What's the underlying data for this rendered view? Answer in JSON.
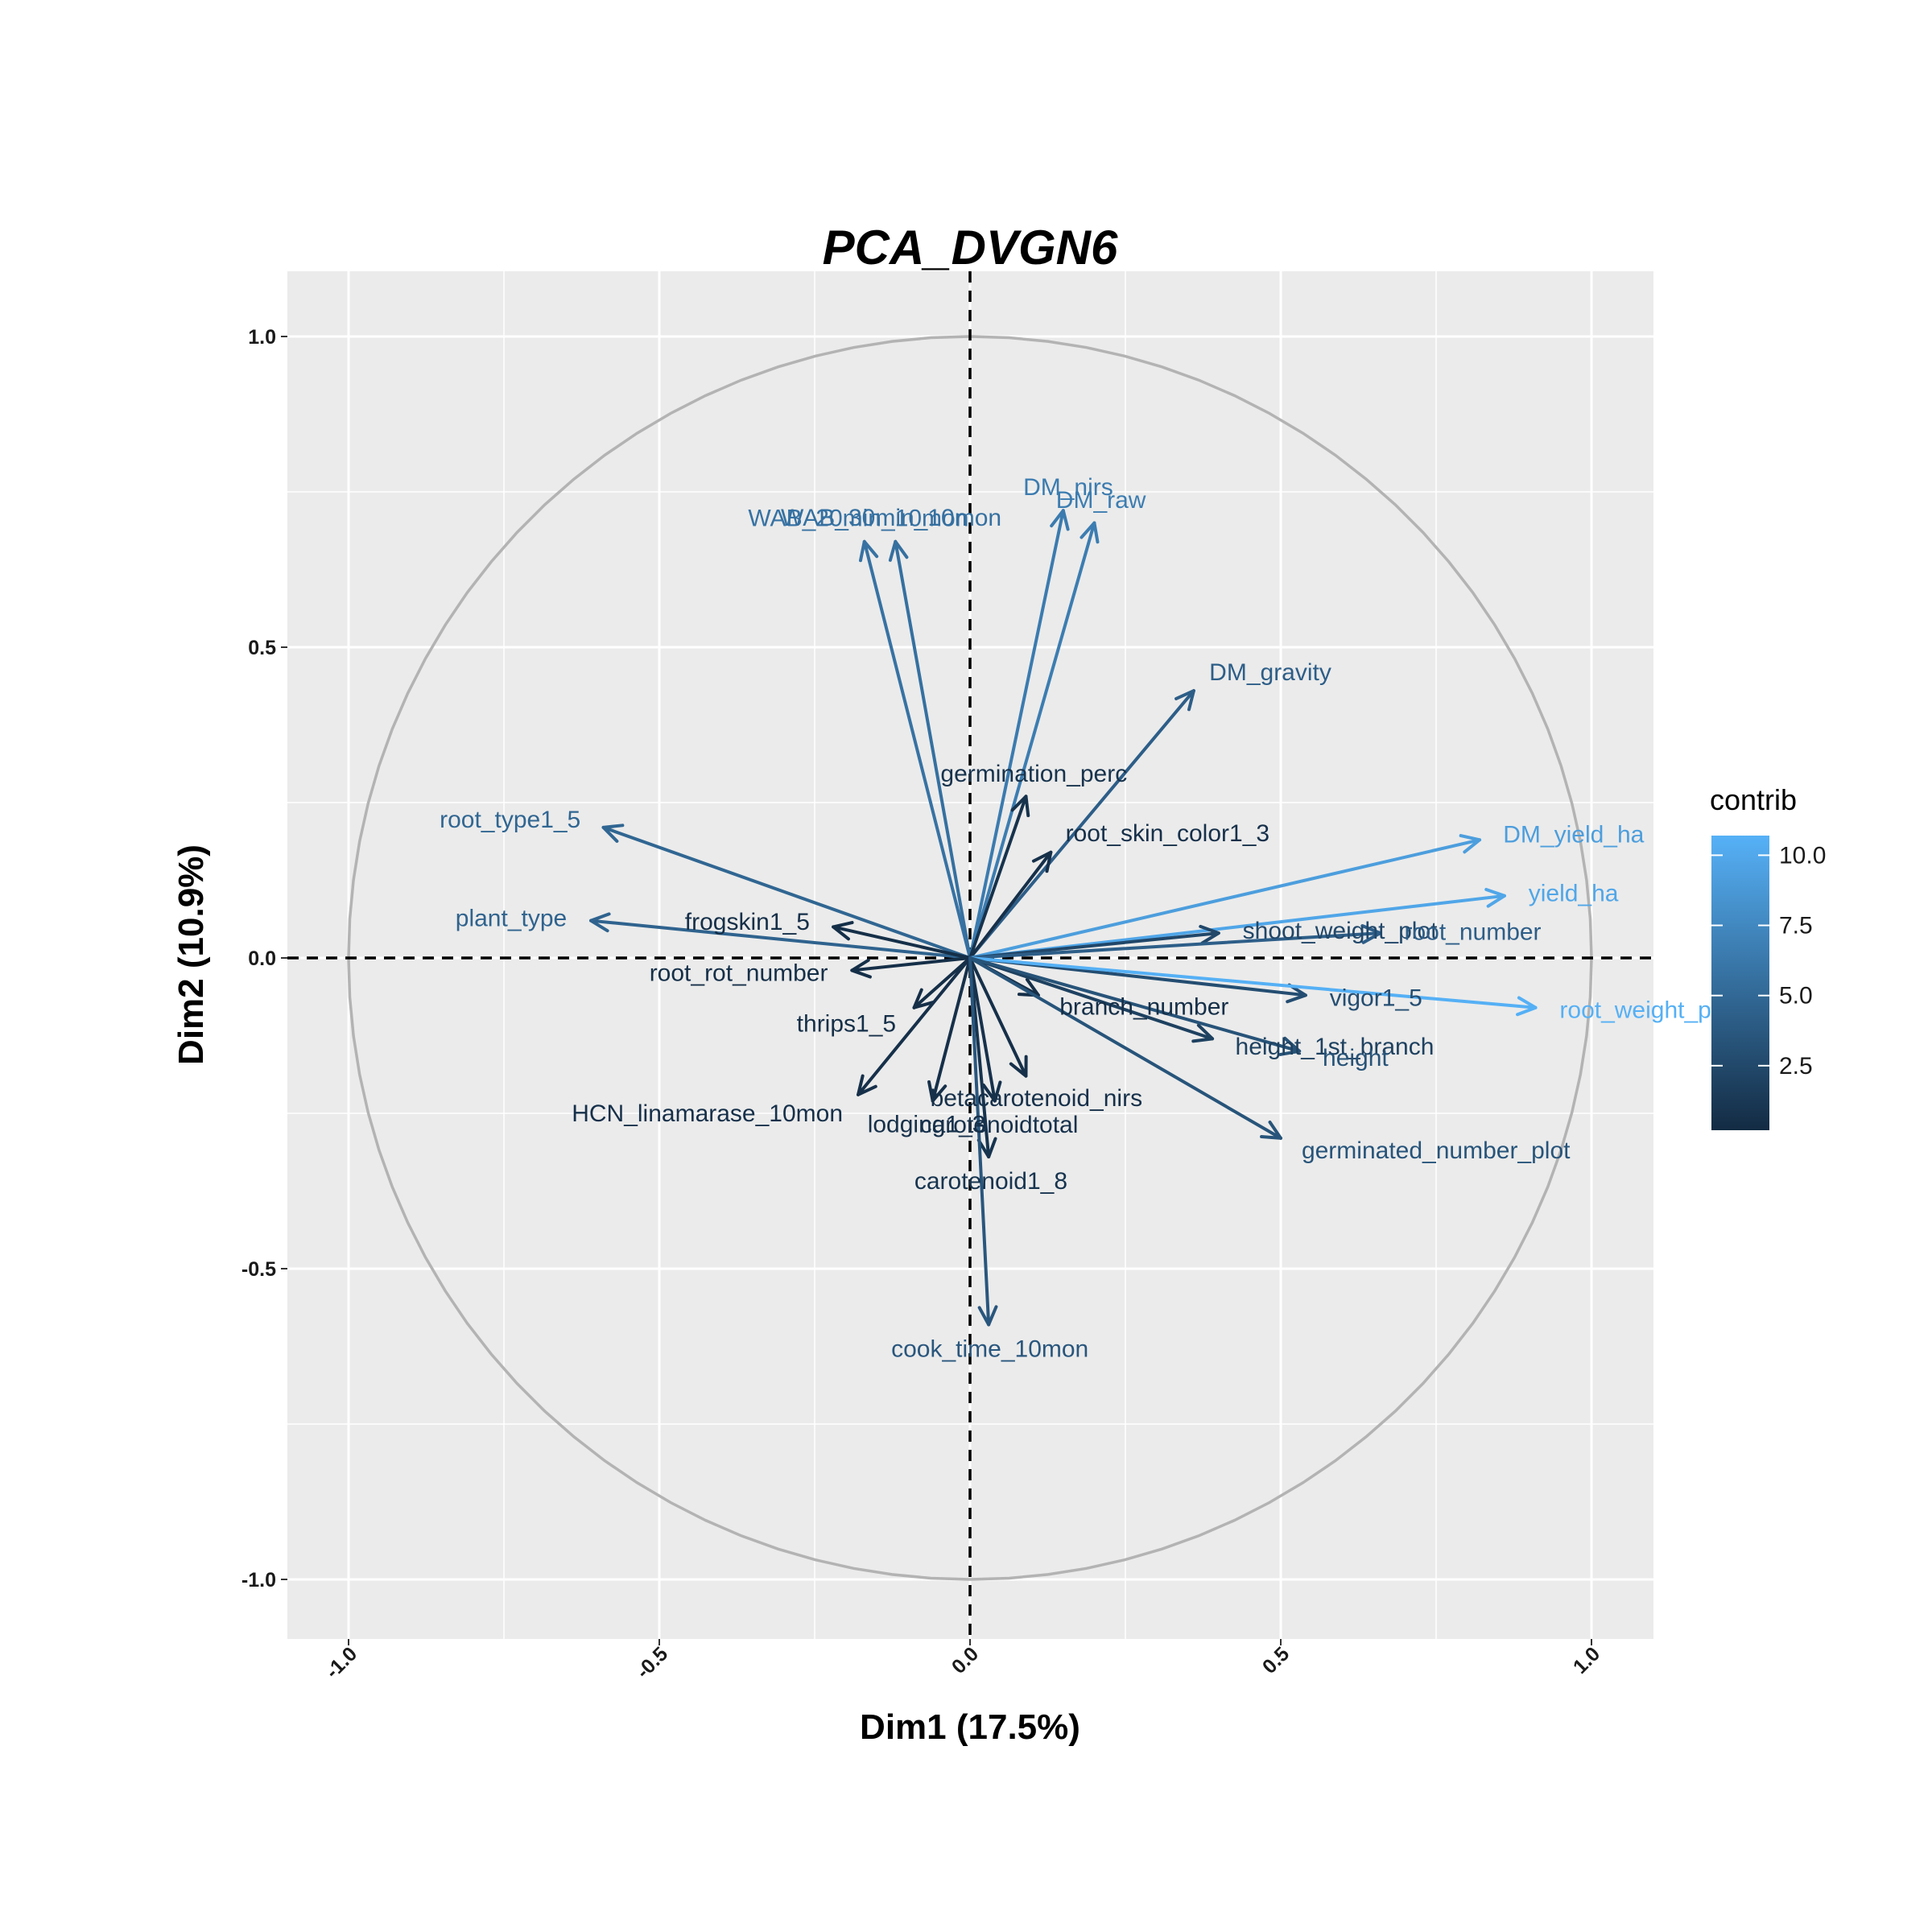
{
  "chart_data": {
    "type": "scatter",
    "subtype": "pca-correlation-circle",
    "title": "PCA_DVGN6",
    "xlabel": "Dim1 (17.5%)",
    "ylabel": "Dim2 (10.9%)",
    "xlim": [
      -1.1,
      1.1
    ],
    "ylim": [
      -1.1,
      1.1
    ],
    "x_ticks": [
      "-1.0",
      "-0.5",
      "0.0",
      "0.5",
      "1.0"
    ],
    "y_ticks": [
      "1.0",
      "0.5",
      "0.0",
      "-0.5",
      "-1.0"
    ],
    "grid": true,
    "legend": {
      "title": "contrib",
      "position": "right",
      "ticks": [
        "10.0",
        "7.5",
        "5.0",
        "2.5"
      ],
      "range": [
        0.2,
        10.7
      ],
      "color_low": "#132B43",
      "color_high": "#56B1F7"
    },
    "variables": [
      {
        "name": "DM_nirs",
        "x": 0.15,
        "y": 0.72,
        "contrib": 6.5
      },
      {
        "name": "DM_raw",
        "x": 0.2,
        "y": 0.7,
        "contrib": 6.6
      },
      {
        "name": "WAB_20min_10mon",
        "x": -0.17,
        "y": 0.67,
        "contrib": 5.8
      },
      {
        "name": "WAB_30min_10mon",
        "x": -0.12,
        "y": 0.67,
        "contrib": 5.6
      },
      {
        "name": "DM_gravity",
        "x": 0.36,
        "y": 0.43,
        "contrib": 4.2
      },
      {
        "name": "germination_perc",
        "x": 0.09,
        "y": 0.26,
        "contrib": 0.8
      },
      {
        "name": "root_skin_color1_3",
        "x": 0.13,
        "y": 0.17,
        "contrib": 0.6
      },
      {
        "name": "DM_yield_ha",
        "x": 0.82,
        "y": 0.19,
        "contrib": 9.2
      },
      {
        "name": "yield_ha",
        "x": 0.86,
        "y": 0.1,
        "contrib": 9.8
      },
      {
        "name": "root_type1_5",
        "x": -0.59,
        "y": 0.21,
        "contrib": 4.8
      },
      {
        "name": "plant_type",
        "x": -0.61,
        "y": 0.06,
        "contrib": 4.6
      },
      {
        "name": "frogskin1_5",
        "x": -0.22,
        "y": 0.05,
        "contrib": 0.5
      },
      {
        "name": "shoot_weight_plot",
        "x": 0.4,
        "y": 0.04,
        "contrib": 2.4
      },
      {
        "name": "root_number",
        "x": 0.66,
        "y": 0.04,
        "contrib": 4.2
      },
      {
        "name": "root_rot_number",
        "x": -0.19,
        "y": -0.02,
        "contrib": 0.5
      },
      {
        "name": "branch_number",
        "x": 0.11,
        "y": -0.06,
        "contrib": 0.5
      },
      {
        "name": "vigor1_5",
        "x": 0.54,
        "y": -0.06,
        "contrib": 2.9
      },
      {
        "name": "root_weight_plot",
        "x": 0.91,
        "y": -0.08,
        "contrib": 10.6
      },
      {
        "name": "thrips1_5",
        "x": -0.09,
        "y": -0.08,
        "contrib": 0.5
      },
      {
        "name": "height_1st_branch",
        "x": 0.39,
        "y": -0.13,
        "contrib": 1.9
      },
      {
        "name": "height",
        "x": 0.53,
        "y": -0.15,
        "contrib": 3.3
      },
      {
        "name": "betacarotenoid_nirs",
        "x": 0.09,
        "y": -0.19,
        "contrib": 0.6
      },
      {
        "name": "HCN_linamarase_10mon",
        "x": -0.18,
        "y": -0.22,
        "contrib": 0.6
      },
      {
        "name": "carotenoidtotal",
        "x": 0.04,
        "y": -0.23,
        "contrib": 0.7
      },
      {
        "name": "lodging1_3",
        "x": -0.06,
        "y": -0.23,
        "contrib": 0.6
      },
      {
        "name": "germinated_number_plot",
        "x": 0.5,
        "y": -0.29,
        "contrib": 3.4
      },
      {
        "name": "carotenoid1_8",
        "x": 0.03,
        "y": -0.32,
        "contrib": 0.9
      },
      {
        "name": "cook_time_10mon",
        "x": 0.03,
        "y": -0.59,
        "contrib": 3.6
      }
    ]
  }
}
